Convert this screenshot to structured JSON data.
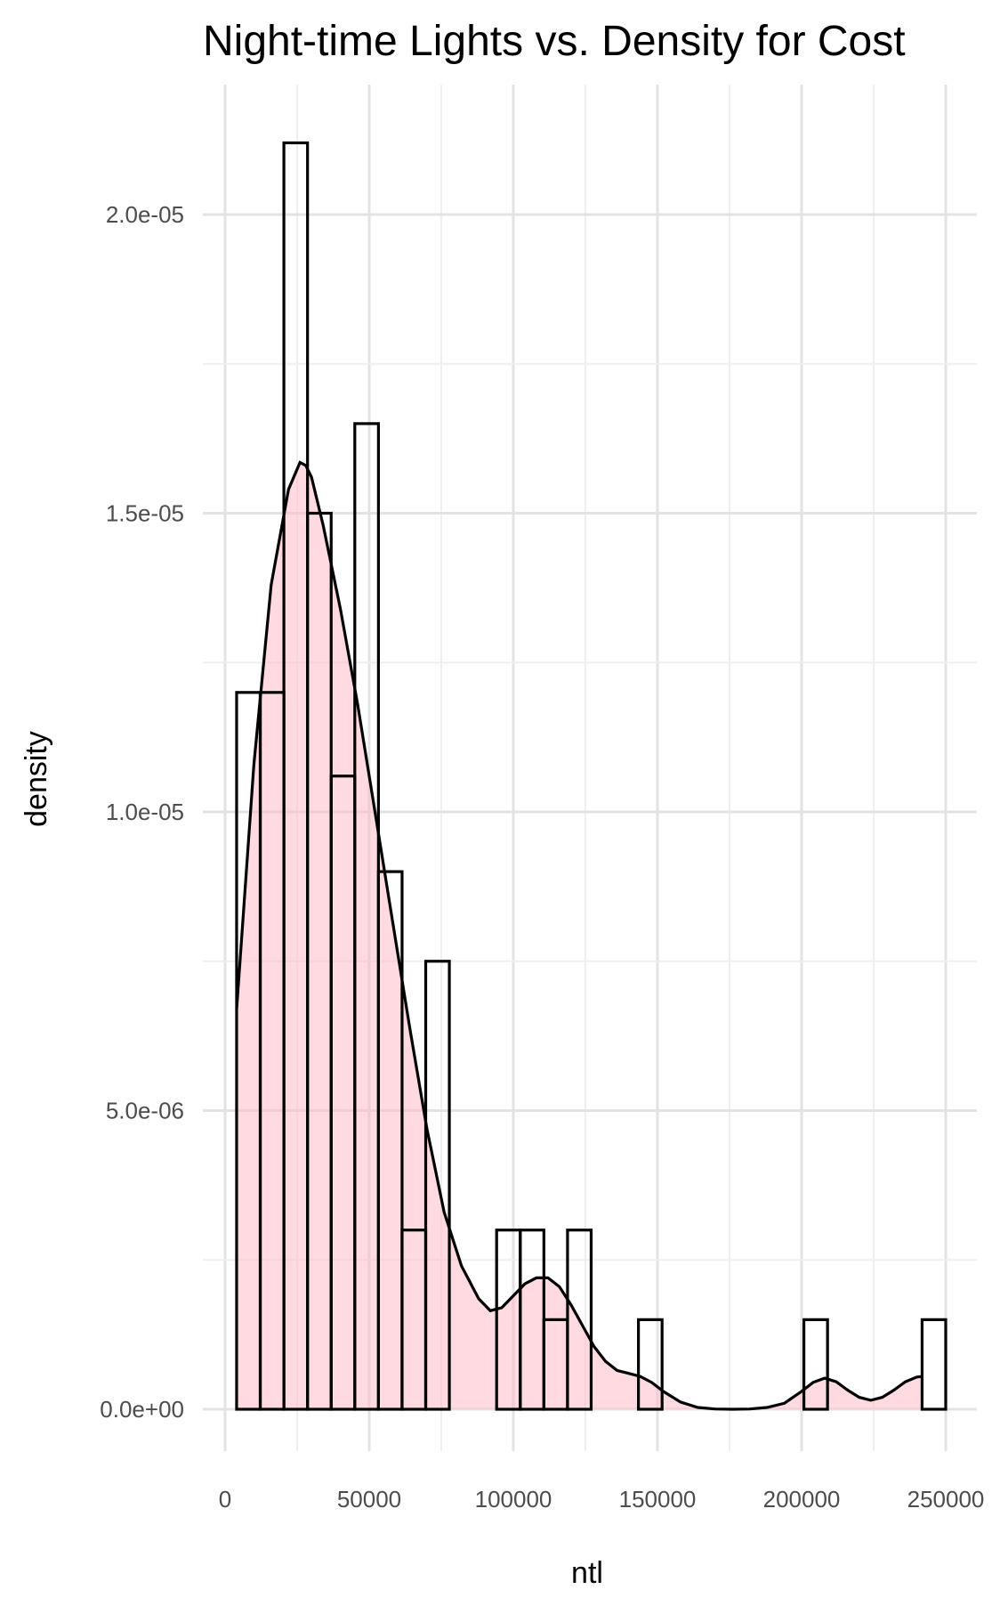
{
  "chart_data": {
    "type": "histogram",
    "title": "Night-time Lights vs. Density for Cost",
    "xlabel": "ntl",
    "ylabel": "density",
    "xlim": [
      -5000,
      255000
    ],
    "ylim": [
      -7.5e-07,
      2.2e-05
    ],
    "x_ticks": [
      0,
      50000,
      100000,
      150000,
      200000,
      250000
    ],
    "x_tick_labels": [
      "0",
      "50000",
      "100000",
      "150000",
      "200000",
      "250000"
    ],
    "y_ticks": [
      0,
      5e-06,
      1e-05,
      1.5e-05,
      2e-05
    ],
    "y_tick_labels": [
      "0.0e+00",
      "5.0e-06",
      "1.0e-05",
      "1.5e-05",
      "2.0e-05"
    ],
    "grid": true,
    "bin_width": 8200,
    "histogram": {
      "name": "histogram",
      "fill": "none",
      "outline": "#000000",
      "bins": [
        {
          "start": 4000,
          "end": 12200,
          "value": 1.2e-05
        },
        {
          "start": 12200,
          "end": 20400,
          "value": 1.2e-05
        },
        {
          "start": 20400,
          "end": 28600,
          "value": 2.12e-05
        },
        {
          "start": 28600,
          "end": 36800,
          "value": 1.5e-05
        },
        {
          "start": 36800,
          "end": 45000,
          "value": 1.06e-05
        },
        {
          "start": 45000,
          "end": 53200,
          "value": 1.65e-05
        },
        {
          "start": 53200,
          "end": 61400,
          "value": 9e-06
        },
        {
          "start": 61400,
          "end": 69600,
          "value": 3e-06
        },
        {
          "start": 69600,
          "end": 77800,
          "value": 7.5e-06
        },
        {
          "start": 94200,
          "end": 102400,
          "value": 3e-06
        },
        {
          "start": 102400,
          "end": 110600,
          "value": 3e-06
        },
        {
          "start": 110600,
          "end": 118800,
          "value": 1.5e-06
        },
        {
          "start": 118800,
          "end": 127000,
          "value": 3e-06
        },
        {
          "start": 143400,
          "end": 151600,
          "value": 1.5e-06
        },
        {
          "start": 200800,
          "end": 209000,
          "value": 1.5e-06
        },
        {
          "start": 241800,
          "end": 250000,
          "value": 1.5e-06
        }
      ]
    },
    "density": {
      "name": "density",
      "fill": "#ffb6c1",
      "line": "#000000",
      "x": [
        4000,
        10000,
        16000,
        22000,
        26000,
        28000,
        30000,
        34000,
        40000,
        46000,
        52000,
        58000,
        64000,
        70000,
        76000,
        82000,
        88000,
        92000,
        96000,
        100000,
        104000,
        108000,
        112000,
        116000,
        120000,
        124000,
        128000,
        132000,
        136000,
        140000,
        144000,
        148000,
        152000,
        158000,
        164000,
        170000,
        176000,
        182000,
        188000,
        194000,
        200000,
        204000,
        208000,
        212000,
        216000,
        220000,
        224000,
        228000,
        232000,
        236000,
        240000,
        242000
      ],
      "y": [
        6.7e-06,
        1.08e-05,
        1.38e-05,
        1.54e-05,
        1.585e-05,
        1.58e-05,
        1.56e-05,
        1.48e-05,
        1.34e-05,
        1.18e-05,
        1e-05,
        8.2e-06,
        6.4e-06,
        4.7e-06,
        3.3e-06,
        2.4e-06,
        1.85e-06,
        1.65e-06,
        1.7e-06,
        1.9e-06,
        2.1e-06,
        2.2e-06,
        2.2e-06,
        2.05e-06,
        1.75e-06,
        1.4e-06,
        1.05e-06,
        8e-07,
        6.5e-07,
        6e-07,
        5.5e-07,
        4.5e-07,
        3e-07,
        1.2e-07,
        3e-08,
        5e-09,
        0,
        5e-09,
        3e-08,
        1e-07,
        3e-07,
        4.5e-07,
        5.2e-07,
        4.6e-07,
        3.2e-07,
        2e-07,
        1.5e-07,
        2e-07,
        3.2e-07,
        4.6e-07,
        5.4e-07,
        5.5e-07
      ]
    }
  }
}
